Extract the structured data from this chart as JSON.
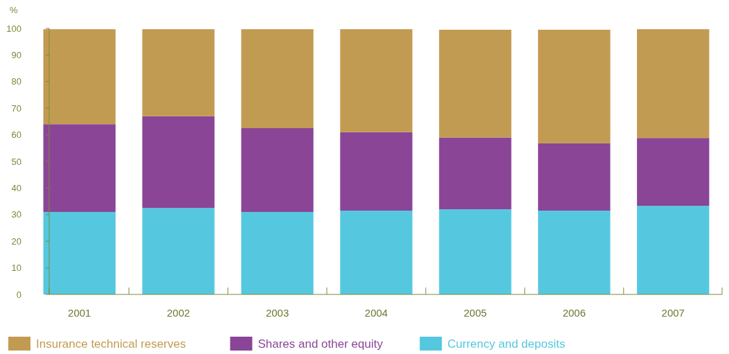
{
  "chart_data": {
    "type": "bar",
    "stacked": true,
    "ylabel": "%",
    "categories": [
      "2001",
      "2002",
      "2003",
      "2004",
      "2005",
      "2006",
      "2007"
    ],
    "series": [
      {
        "name": "Currency and deposits",
        "color": "#55c8e0",
        "values": [
          31,
          32.5,
          31,
          31.5,
          32,
          31.5,
          33.3
        ]
      },
      {
        "name": "Shares and other equity",
        "color": "#8a4597",
        "values": [
          33,
          34.5,
          31.5,
          29.5,
          27,
          25.3,
          25.5
        ]
      },
      {
        "name": "Insurance technical reserves",
        "color": "#c29b52",
        "values": [
          35.7,
          32.7,
          37.2,
          38.7,
          40.5,
          42.7,
          40.9
        ]
      }
    ],
    "ylim": [
      0,
      100
    ],
    "yticks": [
      0,
      10,
      20,
      30,
      40,
      50,
      60,
      70,
      80,
      90,
      100
    ],
    "grid": false,
    "legend": "bottom"
  }
}
